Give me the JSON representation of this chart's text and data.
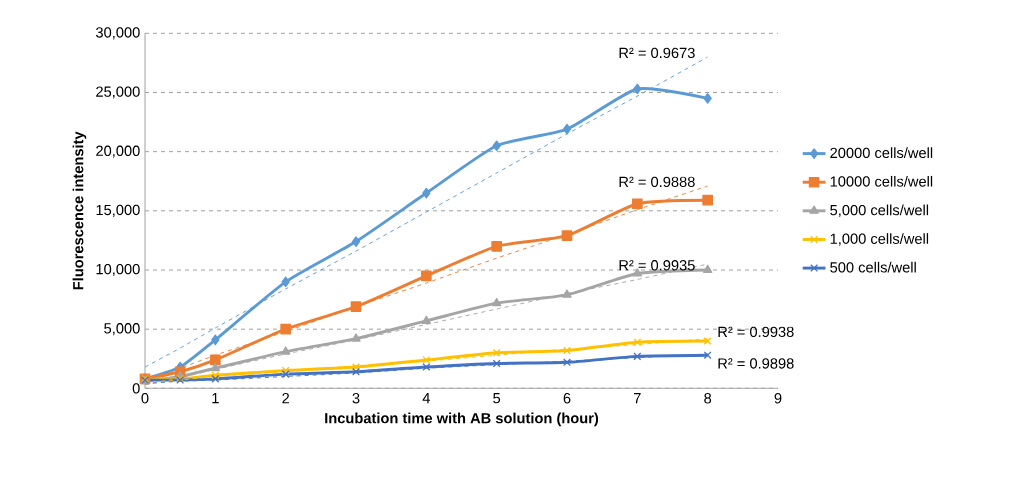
{
  "chart_data": {
    "type": "line",
    "xlabel": "Incubation time with AB solution (hour)",
    "ylabel": "Fluorescence intensity",
    "x": [
      0,
      0.5,
      1,
      2,
      3,
      4,
      5,
      6,
      7,
      8
    ],
    "series": [
      {
        "name": "20000 cells/well",
        "color": "#5b9bd5",
        "marker": "diamond",
        "values": [
          800,
          1800,
          4100,
          9000,
          12400,
          16500,
          20500,
          21900,
          25300,
          24500
        ]
      },
      {
        "name": "10000 cells/well",
        "color": "#ed7d31",
        "marker": "square",
        "values": [
          800,
          1400,
          2400,
          5000,
          6900,
          9500,
          12000,
          12900,
          15600,
          15900
        ]
      },
      {
        "name": "5,000 cells/well",
        "color": "#a5a5a5",
        "marker": "triangle",
        "values": [
          600,
          1000,
          1700,
          3100,
          4200,
          5700,
          7200,
          7900,
          9700,
          10000
        ]
      },
      {
        "name": "1,000 cells/well",
        "color": "#ffc000",
        "marker": "cross",
        "values": [
          800,
          800,
          1100,
          1500,
          1800,
          2400,
          3000,
          3200,
          3900,
          4000
        ]
      },
      {
        "name": "500 cells/well",
        "color": "#4472c4",
        "marker": "cross",
        "values": [
          700,
          700,
          800,
          1200,
          1400,
          1800,
          2100,
          2200,
          2700,
          2800
        ]
      },
      {
        "color": "#5b9bd5",
        "values": [
          1800,
          3400,
          5100,
          8400,
          11600,
          14900,
          18200,
          21500,
          24700,
          28000
        ],
        "line_style": "dashed",
        "marker": "none"
      },
      {
        "color": "#ed7d31",
        "values": [
          700,
          1700,
          2800,
          4800,
          6900,
          8900,
          11000,
          13000,
          15100,
          17100
        ],
        "line_style": "dashed",
        "marker": "none"
      },
      {
        "color": "#a5a5a5",
        "values": [
          300,
          900,
          1600,
          2900,
          4100,
          5400,
          6700,
          8000,
          9200,
          10500
        ],
        "line_style": "dashed",
        "marker": "none"
      },
      {
        "color": "#ffc000",
        "values": [
          500,
          700,
          1000,
          1400,
          1900,
          2300,
          2800,
          3300,
          3700,
          4200
        ],
        "line_style": "dashed",
        "marker": "none"
      },
      {
        "color": "#4472c4",
        "values": [
          400,
          600,
          700,
          1000,
          1300,
          1700,
          2000,
          2300,
          2600,
          2900
        ],
        "line_style": "dashed",
        "marker": "none"
      }
    ],
    "annotations": [
      "R² = 0.9673",
      "R² = 0.9888",
      "R² = 0.9935",
      "R² = 0.9938",
      "R² = 0.9898"
    ],
    "xlim": [
      0,
      9
    ],
    "xticks": [
      0,
      1,
      2,
      3,
      4,
      5,
      6,
      7,
      8,
      9
    ],
    "ylim": [
      0,
      30000
    ],
    "yticks": [
      0,
      {
        "value": 5000,
        "label": "5,000"
      },
      {
        "value": 10000,
        "label": "10,000"
      },
      {
        "value": 15000,
        "label": "15,000"
      },
      {
        "value": 20000,
        "label": "20,000"
      },
      {
        "value": 25000,
        "label": "25,000"
      },
      {
        "value": 30000,
        "label": "30,000"
      }
    ],
    "grid": "y",
    "legend": "right"
  }
}
